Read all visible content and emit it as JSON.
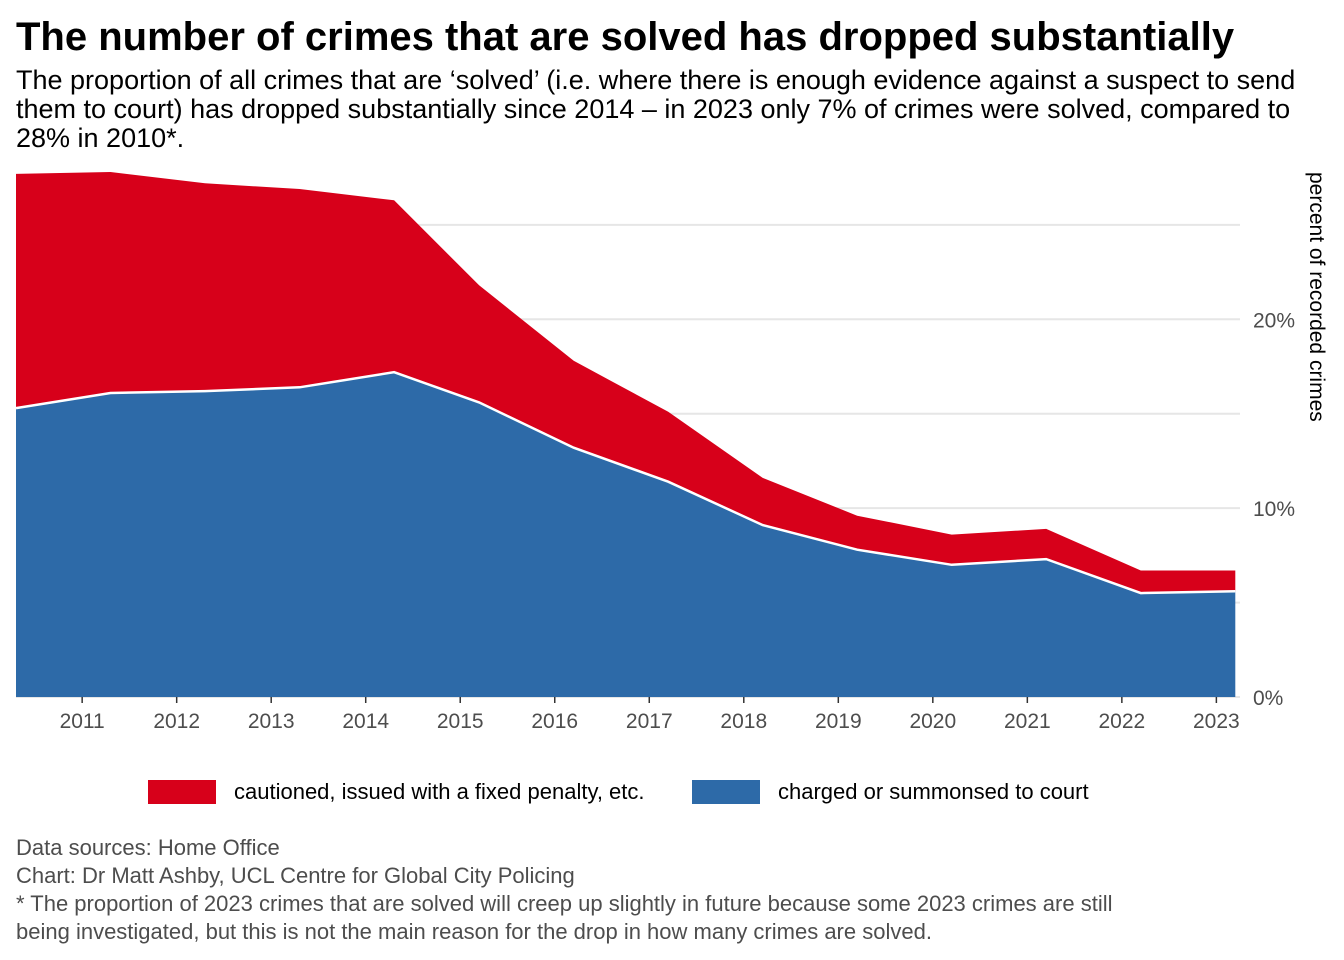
{
  "title": "The number of crimes that are solved has dropped substantially",
  "subtitle": "The proportion of all crimes that are ‘solved’ (i.e. where there is enough evidence against a suspect to send them to court) has dropped substantially since 2014 – in 2023 only 7% of crimes were solved, compared to 28% in 2010*.",
  "caption": {
    "line1": "Data sources: Home Office",
    "line2": "Chart: Dr Matt Ashby, UCL Centre for Global City Policing",
    "line3": "* The proportion of 2023 crimes that are solved will creep up slightly in future because some 2023 crimes are still",
    "line4": "being investigated, but this is not the main reason for the drop in how many crimes are solved."
  },
  "legend": {
    "cautioned_label": "cautioned, issued with a fixed penalty, etc.",
    "charged_label": "charged or summonsed to court"
  },
  "colors": {
    "cautioned": "#d7001a",
    "charged": "#2d6aa8",
    "grid": "#e6e6e6",
    "axis_text": "#4d4d4d"
  },
  "chart_data": {
    "type": "area",
    "stacked": true,
    "title": "The number of crimes that are solved has dropped substantially",
    "xlabel": "",
    "ylabel": "percent of recorded crimes",
    "x": [
      2010.3,
      2011.3,
      2012.3,
      2013.3,
      2014.3,
      2015.2,
      2016.2,
      2017.2,
      2018.2,
      2019.2,
      2020.2,
      2021.2,
      2022.2,
      2023.2
    ],
    "x_tick_labels": [
      "2011",
      "2012",
      "2013",
      "2014",
      "2015",
      "2016",
      "2017",
      "2018",
      "2019",
      "2020",
      "2021",
      "2022",
      "2023"
    ],
    "x_ticks": [
      2011,
      2012,
      2013,
      2014,
      2015,
      2016,
      2017,
      2018,
      2019,
      2020,
      2021,
      2022,
      2023
    ],
    "xlim": [
      2010.3,
      2023.25
    ],
    "ylim": [
      0,
      27.8
    ],
    "y_ticks": [
      0,
      10,
      20
    ],
    "y_tick_labels": [
      "0%",
      "10%",
      "20%"
    ],
    "y_minor_grid": [
      5,
      15,
      25
    ],
    "y_axis_position": "right",
    "grid": true,
    "legend_position": "bottom",
    "series": [
      {
        "name": "charged or summonsed to court",
        "values": [
          15.3,
          16.1,
          16.2,
          16.4,
          17.2,
          15.6,
          13.2,
          11.4,
          9.1,
          7.8,
          7.0,
          7.3,
          5.5,
          5.6
        ]
      },
      {
        "name": "cautioned, issued with a fixed penalty, etc.",
        "values": [
          12.4,
          11.7,
          11.0,
          10.5,
          9.1,
          6.2,
          4.6,
          3.7,
          2.5,
          1.8,
          1.6,
          1.6,
          1.2,
          1.1
        ]
      }
    ]
  }
}
